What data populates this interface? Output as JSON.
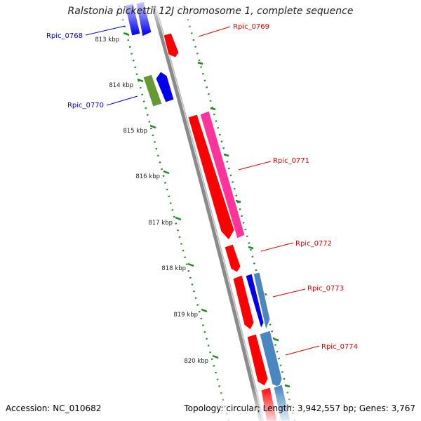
{
  "title": "Ralstonia pickettii 12J chromosome 1, complete sequence",
  "accession_text": "Accession: NC_010682",
  "topology_text": "Topology: circular; Length: 3,942,557 bp; Genes: 3,767",
  "ticks": [
    "813 kbp",
    "814 kbp",
    "815 kbp",
    "816 kbp",
    "817 kbp",
    "818 kbp",
    "819 kbp",
    "820 kbp"
  ],
  "genes": [
    {
      "label": "Rpic_0768",
      "strand": "forward",
      "label_color": "#0000cc",
      "fill": "#0000ee"
    },
    {
      "label": "Rpic_0769",
      "strand": "reverse",
      "label_color": "#dd0000",
      "fill": "#ff0000"
    },
    {
      "label": "Rpic_0770",
      "strand": "forward",
      "label_color": "#0000cc",
      "fill": "#0000ee"
    },
    {
      "label": "Rpic_0771",
      "strand": "reverse",
      "label_color": "#dd0000",
      "fill": "#ff0000"
    },
    {
      "label": "Rpic_0772",
      "strand": "reverse",
      "label_color": "#dd0000",
      "fill": "#ff0000"
    },
    {
      "label": "Rpic_0773",
      "strand": "reverse",
      "label_color": "#dd0000",
      "fill": "#ff0000"
    },
    {
      "label": "Rpic_0774",
      "strand": "reverse",
      "label_color": "#dd0000",
      "fill": "#ff0000"
    }
  ],
  "colors": {
    "cds_red": "#ff0000",
    "cds_blue": "#0000ee",
    "magenta_feature": "#ff3399",
    "olive_feature": "#669933",
    "steelblue_feature": "#4a86c0",
    "backbone": "#8a8a8a",
    "tick_green": "#228822"
  }
}
